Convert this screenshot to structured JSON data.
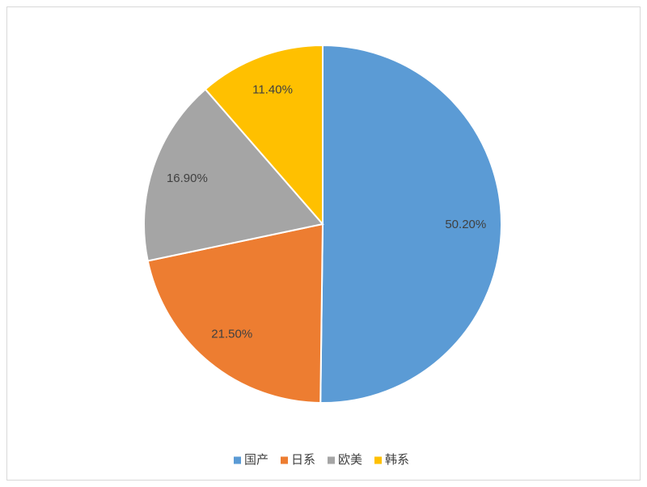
{
  "chart_data": {
    "type": "pie",
    "categories": [
      "国产",
      "日系",
      "欧美",
      "韩系"
    ],
    "values": [
      50.2,
      21.5,
      16.9,
      11.4
    ],
    "value_labels": [
      "50.20%",
      "21.50%",
      "16.90%",
      "11.40%"
    ],
    "colors": [
      "#5b9bd5",
      "#ed7d31",
      "#a5a5a5",
      "#ffc000"
    ],
    "legend": "bottom"
  }
}
